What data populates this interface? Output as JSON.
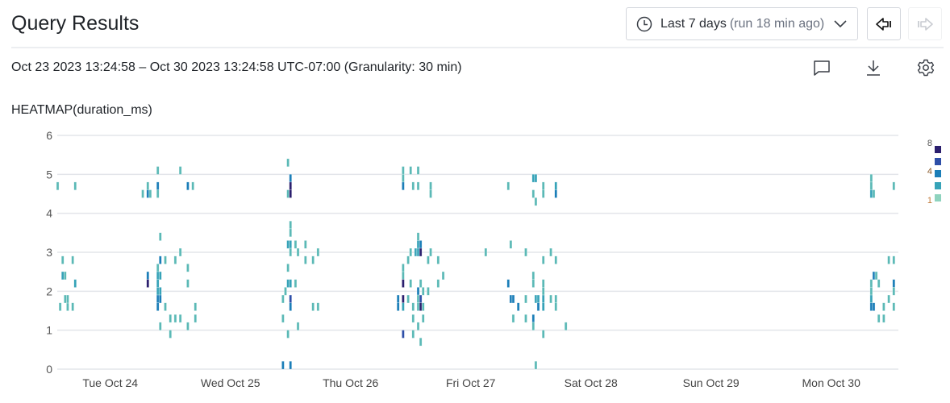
{
  "header": {
    "title": "Query Results",
    "time_picker": {
      "label": "Last 7 days",
      "sub": "(run 18 min ago)",
      "icon": "clock-icon"
    },
    "back_icon": "arrow-left-bar-icon",
    "forward_icon": "arrow-right-bar-icon"
  },
  "subheader": {
    "range_text": "Oct 23 2023 13:24:58 – Oct 30 2023 13:24:58 UTC-07:00 (Granularity: 30 min)",
    "icons": [
      "comment-icon",
      "download-icon",
      "gear-icon"
    ]
  },
  "chart_data": {
    "type": "heatmap",
    "title": "HEATMAP(duration_ms)",
    "granularity_minutes": 30,
    "x_range": [
      "2023-10-23T13:24:58",
      "2023-10-30T13:24:58"
    ],
    "x_ticks": [
      {
        "t": "2023-10-24T00:00",
        "label": "Tue Oct 24"
      },
      {
        "t": "2023-10-25T00:00",
        "label": "Wed Oct 25"
      },
      {
        "t": "2023-10-26T00:00",
        "label": "Thu Oct 26"
      },
      {
        "t": "2023-10-27T00:00",
        "label": "Fri Oct 27"
      },
      {
        "t": "2023-10-28T00:00",
        "label": "Sat Oct 28"
      },
      {
        "t": "2023-10-29T00:00",
        "label": "Sun Oct 29"
      },
      {
        "t": "2023-10-30T00:00",
        "label": "Mon Oct 30"
      }
    ],
    "ylim": [
      0,
      6
    ],
    "y_ticks": [
      "0",
      "1",
      "2",
      "3",
      "4",
      "5",
      "6"
    ],
    "grid": true,
    "legend": {
      "position": "right",
      "labels": [
        "8",
        "4",
        "1"
      ],
      "colors": [
        "#2b1f6e",
        "#2e4fa8",
        "#1b7eb8",
        "#36a3b8",
        "#8ed3be"
      ]
    },
    "cells_format": [
      "time",
      "duration_ms_bucket",
      "count"
    ],
    "cells": [
      [
        "2023-10-23T13:30",
        4.7,
        1
      ],
      [
        "2023-10-23T14:30",
        2.8,
        1
      ],
      [
        "2023-10-23T14:30",
        2.4,
        2
      ],
      [
        "2023-10-23T15:00",
        2.4,
        1
      ],
      [
        "2023-10-23T15:00",
        1.8,
        1
      ],
      [
        "2023-10-23T14:00",
        1.6,
        1
      ],
      [
        "2023-10-23T15:30",
        1.6,
        1
      ],
      [
        "2023-10-23T15:30",
        1.8,
        1
      ],
      [
        "2023-10-23T16:30",
        2.8,
        1
      ],
      [
        "2023-10-23T16:30",
        1.6,
        1
      ],
      [
        "2023-10-23T17:00",
        2.2,
        2
      ],
      [
        "2023-10-23T17:00",
        4.7,
        1
      ],
      [
        "2023-10-24T09:30",
        5.1,
        1
      ],
      [
        "2023-10-24T14:00",
        5.1,
        1
      ],
      [
        "2023-10-24T07:30",
        4.7,
        1
      ],
      [
        "2023-10-24T09:30",
        4.7,
        3
      ],
      [
        "2023-10-24T15:30",
        4.7,
        3
      ],
      [
        "2023-10-24T16:30",
        4.7,
        1
      ],
      [
        "2023-10-24T06:30",
        4.5,
        1
      ],
      [
        "2023-10-24T07:30",
        4.5,
        3
      ],
      [
        "2023-10-24T08:00",
        4.5,
        1
      ],
      [
        "2023-10-24T09:30",
        4.5,
        1
      ],
      [
        "2023-10-24T10:00",
        3.4,
        1
      ],
      [
        "2023-10-24T14:00",
        3.0,
        1
      ],
      [
        "2023-10-24T10:00",
        2.8,
        3
      ],
      [
        "2023-10-24T11:00",
        2.8,
        1
      ],
      [
        "2023-10-24T13:00",
        2.8,
        1
      ],
      [
        "2023-10-24T09:30",
        2.6,
        1
      ],
      [
        "2023-10-24T15:30",
        2.6,
        1
      ],
      [
        "2023-10-24T07:30",
        2.4,
        3
      ],
      [
        "2023-10-24T09:30",
        2.4,
        2
      ],
      [
        "2023-10-24T10:00",
        2.4,
        2
      ],
      [
        "2023-10-24T07:30",
        2.2,
        8
      ],
      [
        "2023-10-24T09:30",
        2.2,
        2
      ],
      [
        "2023-10-24T15:30",
        2.2,
        1
      ],
      [
        "2023-10-24T09:30",
        2.0,
        2
      ],
      [
        "2023-10-24T10:00",
        2.0,
        2
      ],
      [
        "2023-10-24T09:30",
        1.8,
        4
      ],
      [
        "2023-10-24T10:00",
        1.8,
        4
      ],
      [
        "2023-10-24T09:30",
        1.6,
        3
      ],
      [
        "2023-10-24T11:00",
        1.6,
        1
      ],
      [
        "2023-10-24T17:00",
        1.6,
        1
      ],
      [
        "2023-10-24T12:00",
        1.3,
        1
      ],
      [
        "2023-10-24T13:00",
        1.3,
        1
      ],
      [
        "2023-10-24T14:00",
        1.3,
        1
      ],
      [
        "2023-10-24T17:00",
        1.3,
        1
      ],
      [
        "2023-10-24T10:00",
        1.1,
        1
      ],
      [
        "2023-10-24T15:30",
        1.1,
        1
      ],
      [
        "2023-10-24T12:00",
        0.9,
        1
      ],
      [
        "2023-10-25T11:30",
        5.3,
        1
      ],
      [
        "2023-10-25T12:00",
        4.9,
        4
      ],
      [
        "2023-10-25T12:00",
        4.7,
        8
      ],
      [
        "2023-10-25T11:30",
        4.5,
        1
      ],
      [
        "2023-10-25T12:00",
        4.5,
        8
      ],
      [
        "2023-10-25T12:00",
        3.7,
        1
      ],
      [
        "2023-10-25T12:00",
        3.5,
        1
      ],
      [
        "2023-10-25T11:30",
        3.2,
        2
      ],
      [
        "2023-10-25T12:00",
        3.2,
        2
      ],
      [
        "2023-10-25T13:00",
        3.2,
        1
      ],
      [
        "2023-10-25T15:00",
        3.2,
        1
      ],
      [
        "2023-10-25T12:00",
        3.0,
        1
      ],
      [
        "2023-10-25T13:30",
        3.0,
        1
      ],
      [
        "2023-10-25T17:30",
        3.0,
        1
      ],
      [
        "2023-10-25T15:00",
        2.8,
        1
      ],
      [
        "2023-10-25T16:30",
        2.8,
        1
      ],
      [
        "2023-10-25T11:30",
        2.6,
        1
      ],
      [
        "2023-10-25T11:30",
        2.2,
        2
      ],
      [
        "2023-10-25T12:00",
        2.2,
        2
      ],
      [
        "2023-10-25T13:00",
        2.2,
        1
      ],
      [
        "2023-10-25T11:00",
        2.0,
        1
      ],
      [
        "2023-10-25T10:30",
        1.8,
        1
      ],
      [
        "2023-10-25T12:00",
        1.8,
        6
      ],
      [
        "2023-10-25T12:00",
        1.6,
        4
      ],
      [
        "2023-10-25T16:30",
        1.6,
        1
      ],
      [
        "2023-10-25T17:30",
        1.6,
        1
      ],
      [
        "2023-10-25T10:30",
        1.3,
        1
      ],
      [
        "2023-10-25T13:30",
        1.1,
        1
      ],
      [
        "2023-10-25T11:30",
        0.9,
        1
      ],
      [
        "2023-10-25T10:30",
        0.1,
        4
      ],
      [
        "2023-10-25T12:00",
        0.1,
        4
      ],
      [
        "2023-10-26T10:30",
        5.1,
        1
      ],
      [
        "2023-10-26T12:00",
        5.1,
        1
      ],
      [
        "2023-10-26T13:30",
        5.1,
        1
      ],
      [
        "2023-10-26T10:30",
        4.9,
        1
      ],
      [
        "2023-10-26T10:30",
        4.7,
        3
      ],
      [
        "2023-10-26T12:30",
        4.7,
        1
      ],
      [
        "2023-10-26T13:30",
        4.7,
        1
      ],
      [
        "2023-10-26T16:00",
        4.7,
        1
      ],
      [
        "2023-10-26T16:00",
        4.5,
        1
      ],
      [
        "2023-10-26T13:30",
        3.4,
        1
      ],
      [
        "2023-10-26T13:30",
        3.2,
        2
      ],
      [
        "2023-10-26T14:00",
        3.2,
        4
      ],
      [
        "2023-10-26T12:00",
        3.0,
        1
      ],
      [
        "2023-10-26T13:00",
        3.0,
        2
      ],
      [
        "2023-10-26T13:30",
        3.0,
        2
      ],
      [
        "2023-10-26T14:00",
        3.0,
        8
      ],
      [
        "2023-10-26T16:00",
        3.0,
        1
      ],
      [
        "2023-10-26T11:30",
        2.8,
        1
      ],
      [
        "2023-10-26T15:30",
        2.8,
        1
      ],
      [
        "2023-10-26T17:30",
        2.8,
        1
      ],
      [
        "2023-10-26T10:30",
        2.6,
        1
      ],
      [
        "2023-10-26T10:30",
        2.4,
        1
      ],
      [
        "2023-10-26T18:30",
        2.4,
        1
      ],
      [
        "2023-10-26T10:30",
        2.2,
        8
      ],
      [
        "2023-10-26T12:00",
        2.2,
        1
      ],
      [
        "2023-10-26T14:00",
        2.2,
        1
      ],
      [
        "2023-10-26T17:30",
        2.2,
        1
      ],
      [
        "2023-10-26T13:30",
        2.0,
        3
      ],
      [
        "2023-10-26T14:30",
        2.0,
        1
      ],
      [
        "2023-10-26T15:30",
        2.0,
        1
      ],
      [
        "2023-10-26T09:30",
        1.8,
        3
      ],
      [
        "2023-10-26T10:30",
        1.8,
        8
      ],
      [
        "2023-10-26T11:30",
        1.8,
        1
      ],
      [
        "2023-10-26T13:30",
        1.8,
        1
      ],
      [
        "2023-10-26T14:00",
        1.8,
        5
      ],
      [
        "2023-10-26T09:30",
        1.6,
        4
      ],
      [
        "2023-10-26T10:30",
        1.6,
        2
      ],
      [
        "2023-10-26T12:30",
        1.6,
        1
      ],
      [
        "2023-10-26T13:30",
        1.6,
        1
      ],
      [
        "2023-10-26T14:00",
        1.6,
        8
      ],
      [
        "2023-10-26T14:30",
        1.6,
        1
      ],
      [
        "2023-10-26T12:30",
        1.3,
        1
      ],
      [
        "2023-10-26T14:30",
        1.3,
        1
      ],
      [
        "2023-10-26T13:30",
        1.1,
        1
      ],
      [
        "2023-10-26T10:30",
        0.9,
        5
      ],
      [
        "2023-10-26T12:30",
        0.9,
        1
      ],
      [
        "2023-10-26T14:00",
        0.7,
        1
      ],
      [
        "2023-10-27T12:30",
        4.9,
        2
      ],
      [
        "2023-10-27T13:00",
        4.9,
        2
      ],
      [
        "2023-10-27T07:30",
        4.7,
        1
      ],
      [
        "2023-10-27T14:30",
        4.7,
        1
      ],
      [
        "2023-10-27T17:00",
        4.7,
        2
      ],
      [
        "2023-10-27T12:30",
        4.5,
        1
      ],
      [
        "2023-10-27T14:30",
        4.5,
        1
      ],
      [
        "2023-10-27T17:00",
        4.5,
        4
      ],
      [
        "2023-10-27T13:00",
        4.3,
        1
      ],
      [
        "2023-10-27T08:00",
        3.2,
        1
      ],
      [
        "2023-10-27T03:00",
        3.0,
        1
      ],
      [
        "2023-10-27T11:00",
        3.0,
        1
      ],
      [
        "2023-10-27T16:00",
        3.0,
        1
      ],
      [
        "2023-10-27T14:30",
        2.8,
        1
      ],
      [
        "2023-10-27T17:00",
        2.8,
        1
      ],
      [
        "2023-10-27T12:30",
        2.4,
        1
      ],
      [
        "2023-10-27T07:30",
        2.2,
        3
      ],
      [
        "2023-10-27T12:30",
        2.2,
        1
      ],
      [
        "2023-10-27T14:30",
        2.2,
        1
      ],
      [
        "2023-10-27T14:30",
        2.0,
        1
      ],
      [
        "2023-10-27T08:00",
        1.8,
        3
      ],
      [
        "2023-10-27T08:30",
        1.8,
        3
      ],
      [
        "2023-10-27T11:00",
        1.8,
        1
      ],
      [
        "2023-10-27T13:00",
        1.8,
        2
      ],
      [
        "2023-10-27T13:30",
        1.8,
        2
      ],
      [
        "2023-10-27T14:30",
        1.8,
        2
      ],
      [
        "2023-10-27T16:00",
        1.8,
        1
      ],
      [
        "2023-10-27T17:00",
        1.8,
        1
      ],
      [
        "2023-10-27T09:30",
        1.6,
        3
      ],
      [
        "2023-10-27T13:30",
        1.6,
        3
      ],
      [
        "2023-10-27T14:30",
        1.6,
        2
      ],
      [
        "2023-10-27T17:00",
        1.6,
        1
      ],
      [
        "2023-10-27T08:30",
        1.3,
        1
      ],
      [
        "2023-10-27T11:00",
        1.3,
        1
      ],
      [
        "2023-10-27T12:30",
        1.3,
        4
      ],
      [
        "2023-10-27T12:30",
        1.1,
        1
      ],
      [
        "2023-10-27T19:00",
        1.1,
        1
      ],
      [
        "2023-10-27T14:30",
        0.9,
        1
      ],
      [
        "2023-10-27T13:00",
        0.1,
        1
      ],
      [
        "2023-10-30T08:00",
        4.9,
        1
      ],
      [
        "2023-10-30T08:00",
        4.7,
        1
      ],
      [
        "2023-10-30T12:30",
        4.7,
        1
      ],
      [
        "2023-10-30T08:00",
        4.5,
        2
      ],
      [
        "2023-10-30T08:30",
        4.5,
        1
      ],
      [
        "2023-10-30T11:30",
        2.8,
        1
      ],
      [
        "2023-10-30T12:30",
        2.8,
        1
      ],
      [
        "2023-10-30T08:30",
        2.4,
        3
      ],
      [
        "2023-10-30T09:00",
        2.4,
        1
      ],
      [
        "2023-10-30T08:00",
        2.2,
        1
      ],
      [
        "2023-10-30T09:30",
        2.2,
        1
      ],
      [
        "2023-10-30T12:30",
        2.2,
        4
      ],
      [
        "2023-10-30T08:00",
        2.0,
        1
      ],
      [
        "2023-10-30T12:30",
        2.0,
        1
      ],
      [
        "2023-10-30T08:00",
        1.8,
        2
      ],
      [
        "2023-10-30T11:30",
        1.8,
        1
      ],
      [
        "2023-10-30T08:00",
        1.6,
        4
      ],
      [
        "2023-10-30T08:30",
        1.6,
        4
      ],
      [
        "2023-10-30T10:30",
        1.6,
        1
      ],
      [
        "2023-10-30T12:30",
        1.6,
        1
      ],
      [
        "2023-10-30T09:30",
        1.3,
        1
      ],
      [
        "2023-10-30T10:30",
        1.3,
        1
      ]
    ]
  }
}
